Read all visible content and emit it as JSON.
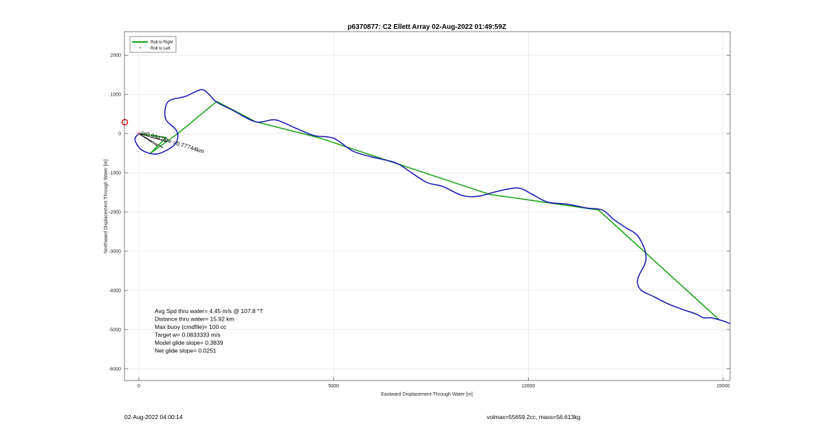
{
  "chart_data": {
    "type": "line",
    "title": "p6370877: C2 Ellett Array 02-Aug-2022 01:49:59Z",
    "xlabel": "Eastward Displacement Through Water [m]",
    "ylabel": "Northward Displacement Through Water [m]",
    "xlim": [
      -370,
      15180
    ],
    "ylim": [
      -6300,
      2600
    ],
    "xticks": [
      0,
      5000,
      10000,
      15000
    ],
    "yticks": [
      -6000,
      -5000,
      -4000,
      -3000,
      -2000,
      -1000,
      0,
      1000,
      2000
    ],
    "grid": true,
    "legend_position": "top-left",
    "legend": [
      "Roll to Right",
      "Roll to Left"
    ],
    "series": [
      {
        "name": "Roll to Right",
        "color": "#1aa31a",
        "x": [
          0,
          700,
          300,
          1000,
          2000,
          3000,
          4600,
          9000,
          11800,
          14900
        ],
        "y": [
          0,
          -100,
          -500,
          0,
          820,
          300,
          -100,
          -1550,
          -1950,
          -4750
        ]
      },
      {
        "name": "trajectory",
        "color": "#1a1ab3",
        "x": [
          0,
          -100,
          50,
          350,
          600,
          900,
          1000,
          950,
          700,
          680,
          800,
          1200,
          1600,
          1800,
          2000,
          2400,
          3000,
          3500,
          4000,
          4500,
          5000,
          5500,
          6000,
          6600,
          7000,
          7400,
          7800,
          8300,
          8700,
          9100,
          9500,
          9800,
          10100,
          10500,
          11000,
          11500,
          11900,
          12200,
          12500,
          12800,
          13000,
          13000,
          12850,
          12800,
          12900,
          13200,
          13600,
          14000,
          14300,
          14500,
          14700,
          15000,
          15180
        ],
        "y": [
          0,
          -150,
          -400,
          -520,
          -480,
          -300,
          -100,
          100,
          350,
          650,
          850,
          950,
          1120,
          1000,
          800,
          600,
          300,
          350,
          150,
          -50,
          -120,
          -450,
          -600,
          -750,
          -1000,
          -1250,
          -1350,
          -1580,
          -1600,
          -1500,
          -1410,
          -1400,
          -1550,
          -1750,
          -1800,
          -1900,
          -1950,
          -2200,
          -2400,
          -2600,
          -3000,
          -3300,
          -3600,
          -3800,
          -4000,
          -4150,
          -4350,
          -4500,
          -4600,
          -4700,
          -4700,
          -4780,
          -4850
        ]
      },
      {
        "name": "Roll to Left",
        "color": "#000000",
        "x": [
          0,
          150,
          300,
          450,
          600,
          700
        ],
        "y": [
          0,
          -100,
          -200,
          -300,
          -350,
          -200
        ]
      }
    ],
    "annotation": "pr0.99478hr =0.77744km",
    "marker": {
      "x": -360,
      "y": 290
    },
    "stats": [
      "Avg Spd thru water=  4.45 m/s @ 107.8 °T",
      "Distance thru water= 15.92 km",
      "Max buoy (cmdfile)= 100 cc",
      "Target w= 0.0833333 m/s",
      "Model glide slope= 0.3839",
      "Net glide slope= 0.0251"
    ]
  },
  "footer": {
    "left": "02-Aug-2022 04:00:14",
    "right": "volmax=55659.2cc, mass=56.613kg"
  }
}
